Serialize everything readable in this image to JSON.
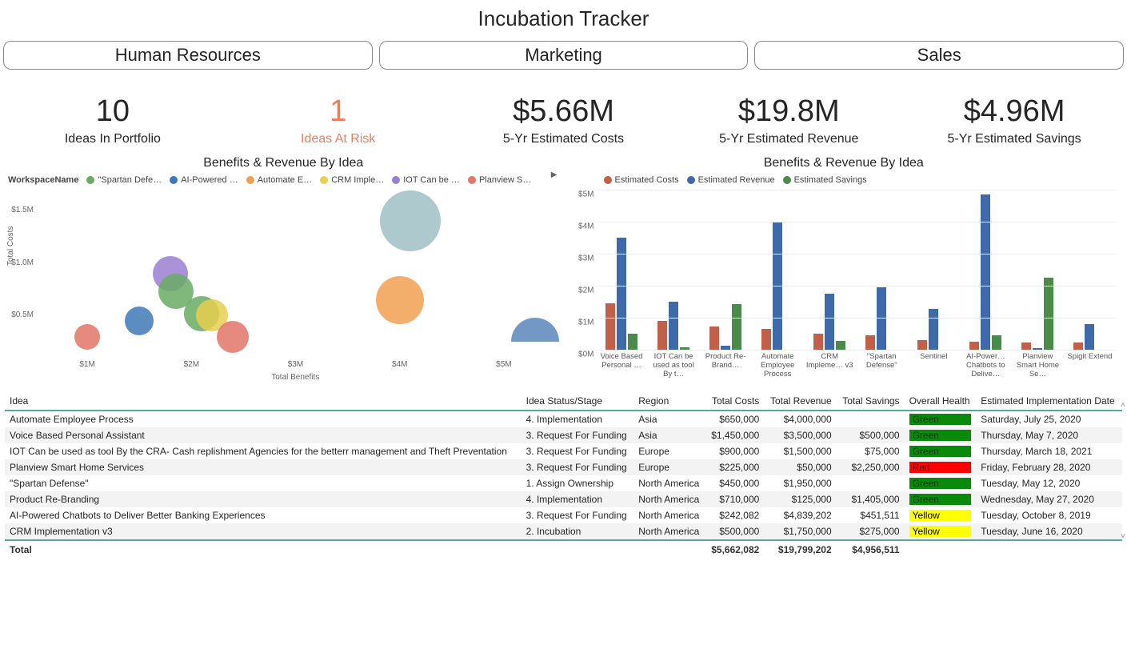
{
  "title": "Incubation Tracker",
  "tabs": [
    "Human Resources",
    "Marketing",
    "Sales"
  ],
  "kpis": [
    {
      "value": "10",
      "label": "Ideas In Portfolio",
      "risk": false
    },
    {
      "value": "1",
      "label": "Ideas At Risk",
      "risk": true
    },
    {
      "value": "$5.66M",
      "label": "5-Yr Estimated Costs",
      "risk": false
    },
    {
      "value": "$19.8M",
      "label": "5-Yr Estimated Revenue",
      "risk": false
    },
    {
      "value": "$4.96M",
      "label": "5-Yr Estimated Savings",
      "risk": false
    }
  ],
  "bubble_chart": {
    "title": "Benefits & Revenue By Idea",
    "legend_header": "WorkspaceName",
    "legend": [
      {
        "label": "\"Spartan Defe…",
        "color": "#6aaa64"
      },
      {
        "label": "AI-Powered …",
        "color": "#3e79b5"
      },
      {
        "label": "Automate E…",
        "color": "#f0a050"
      },
      {
        "label": "CRM Imple…",
        "color": "#e8cf4f"
      },
      {
        "label": "IOT Can be …",
        "color": "#9a7fd1"
      },
      {
        "label": "Planview S…",
        "color": "#e2766a"
      }
    ],
    "x_label": "Total Benefits",
    "y_label": "Total Costs",
    "x_ticks": [
      1,
      2,
      3,
      4,
      5
    ],
    "x_tick_labels": [
      "$1M",
      "$2M",
      "$3M",
      "$4M",
      "$5M"
    ],
    "y_ticks": [
      0.5,
      1.0,
      1.5
    ],
    "y_tick_labels": [
      "$0.5M",
      "$1.0M",
      "$1.5M"
    ],
    "xlim": [
      0.5,
      5.5
    ],
    "ylim": [
      0.1,
      1.7
    ],
    "bubbles": [
      {
        "x": 1.0,
        "y": 0.3,
        "r": 16,
        "color": "#e2766a"
      },
      {
        "x": 1.5,
        "y": 0.45,
        "r": 18,
        "color": "#3e79b5"
      },
      {
        "x": 1.8,
        "y": 0.9,
        "r": 22,
        "color": "#9a7fd1"
      },
      {
        "x": 1.85,
        "y": 0.73,
        "r": 22,
        "color": "#6aaa64"
      },
      {
        "x": 2.1,
        "y": 0.52,
        "r": 22,
        "color": "#6aaa64"
      },
      {
        "x": 2.2,
        "y": 0.5,
        "r": 20,
        "color": "#e8cf4f"
      },
      {
        "x": 2.4,
        "y": 0.3,
        "r": 20,
        "color": "#e2766a"
      },
      {
        "x": 4.0,
        "y": 0.65,
        "r": 30,
        "color": "#f0a050"
      },
      {
        "x": 4.1,
        "y": 1.4,
        "r": 38,
        "color": "#9fbfc4"
      },
      {
        "x": 5.3,
        "y": 0.25,
        "r": 30,
        "color": "#5b86bc",
        "half": true
      }
    ]
  },
  "bar_chart": {
    "title": "Benefits & Revenue By Idea",
    "legend": [
      {
        "label": "Estimated Costs",
        "color": "#c15f48"
      },
      {
        "label": "Estimated Revenue",
        "color": "#3e6aa9"
      },
      {
        "label": "Estimated Savings",
        "color": "#4a8a4a"
      }
    ],
    "y_ticks": [
      0,
      1,
      2,
      3,
      4,
      5
    ],
    "y_tick_labels": [
      "$0M",
      "$1M",
      "$2M",
      "$3M",
      "$4M",
      "$5M"
    ],
    "ymax": 5,
    "categories": [
      "Voice Based Personal …",
      "IOT Can be used as tool By t…",
      "Product Re-Brand…",
      "Automate Employee Process",
      "CRM Impleme… v3",
      "\"Spartan Defense\"",
      "Sentinel",
      "AI-Power… Chatbots to Delive…",
      "Planview Smart Home Se…",
      "Spigit Extend"
    ],
    "series": [
      {
        "color": "#c15f48",
        "values": [
          1.45,
          0.9,
          0.71,
          0.65,
          0.5,
          0.45,
          0.3,
          0.24,
          0.23,
          0.23
        ]
      },
      {
        "color": "#3e6aa9",
        "values": [
          3.5,
          1.5,
          0.13,
          4.0,
          1.75,
          1.95,
          1.28,
          4.84,
          0.05,
          0.8
        ]
      },
      {
        "color": "#4a8a4a",
        "values": [
          0.5,
          0.08,
          1.41,
          0.0,
          0.28,
          0.0,
          0.0,
          0.45,
          2.25,
          0.0
        ]
      }
    ]
  },
  "table": {
    "columns": [
      "Idea",
      "Idea Status/Stage",
      "Region",
      "Total Costs",
      "Total Revenue",
      "Total Savings",
      "Overall Health",
      "Estimated Implementation Date"
    ],
    "num_cols": [
      3,
      4,
      5
    ],
    "rows": [
      [
        "Automate Employee Process",
        "4. Implementation",
        "Asia",
        "$650,000",
        "$4,000,000",
        "",
        {
          "text": "Green",
          "bg": "#0a8a0a",
          "fg": "#053b05"
        },
        "Saturday, July 25, 2020"
      ],
      [
        "Voice Based Personal Assistant",
        "3. Request For Funding",
        "Asia",
        "$1,450,000",
        "$3,500,000",
        "$500,000",
        {
          "text": "Green",
          "bg": "#0a8a0a",
          "fg": "#053b05"
        },
        "Thursday, May 7, 2020"
      ],
      [
        "IOT Can be used as tool By the CRA- Cash replishment Agencies for the betterr management and Theft Preventation",
        "3. Request For Funding",
        "Europe",
        "$900,000",
        "$1,500,000",
        "$75,000",
        {
          "text": "Green",
          "bg": "#0a8a0a",
          "fg": "#053b05"
        },
        "Thursday, March 18, 2021"
      ],
      [
        "Planview Smart Home Services",
        "3. Request For Funding",
        "Europe",
        "$225,000",
        "$50,000",
        "$2,250,000",
        {
          "text": "Red",
          "bg": "#ff0000",
          "fg": "#6a0000"
        },
        "Friday, February 28, 2020"
      ],
      [
        "\"Spartan Defense\"",
        "1. Assign Ownership",
        "North America",
        "$450,000",
        "$1,950,000",
        "",
        {
          "text": "Green",
          "bg": "#0a8a0a",
          "fg": "#053b05"
        },
        "Tuesday, May 12, 2020"
      ],
      [
        "Product Re-Branding",
        "4. Implementation",
        "North America",
        "$710,000",
        "$125,000",
        "$1,405,000",
        {
          "text": "Green",
          "bg": "#0a8a0a",
          "fg": "#053b05"
        },
        "Wednesday, May 27, 2020"
      ],
      [
        "AI-Powered Chatbots to Deliver Better Banking Experiences",
        "3. Request For Funding",
        "North America",
        "$242,082",
        "$4,839,202",
        "$451,511",
        {
          "text": "Yellow",
          "bg": "#ffff00",
          "fg": "#000"
        },
        "Tuesday, October 8, 2019"
      ],
      [
        "CRM Implementation v3",
        "2. Incubation",
        "North America",
        "$500,000",
        "$1,750,000",
        "$275,000",
        {
          "text": "Yellow",
          "bg": "#ffff00",
          "fg": "#000"
        },
        "Tuesday, June 16, 2020"
      ]
    ],
    "total_row": [
      "Total",
      "",
      "",
      "$5,662,082",
      "$19,799,202",
      "$4,956,511",
      "",
      ""
    ]
  }
}
